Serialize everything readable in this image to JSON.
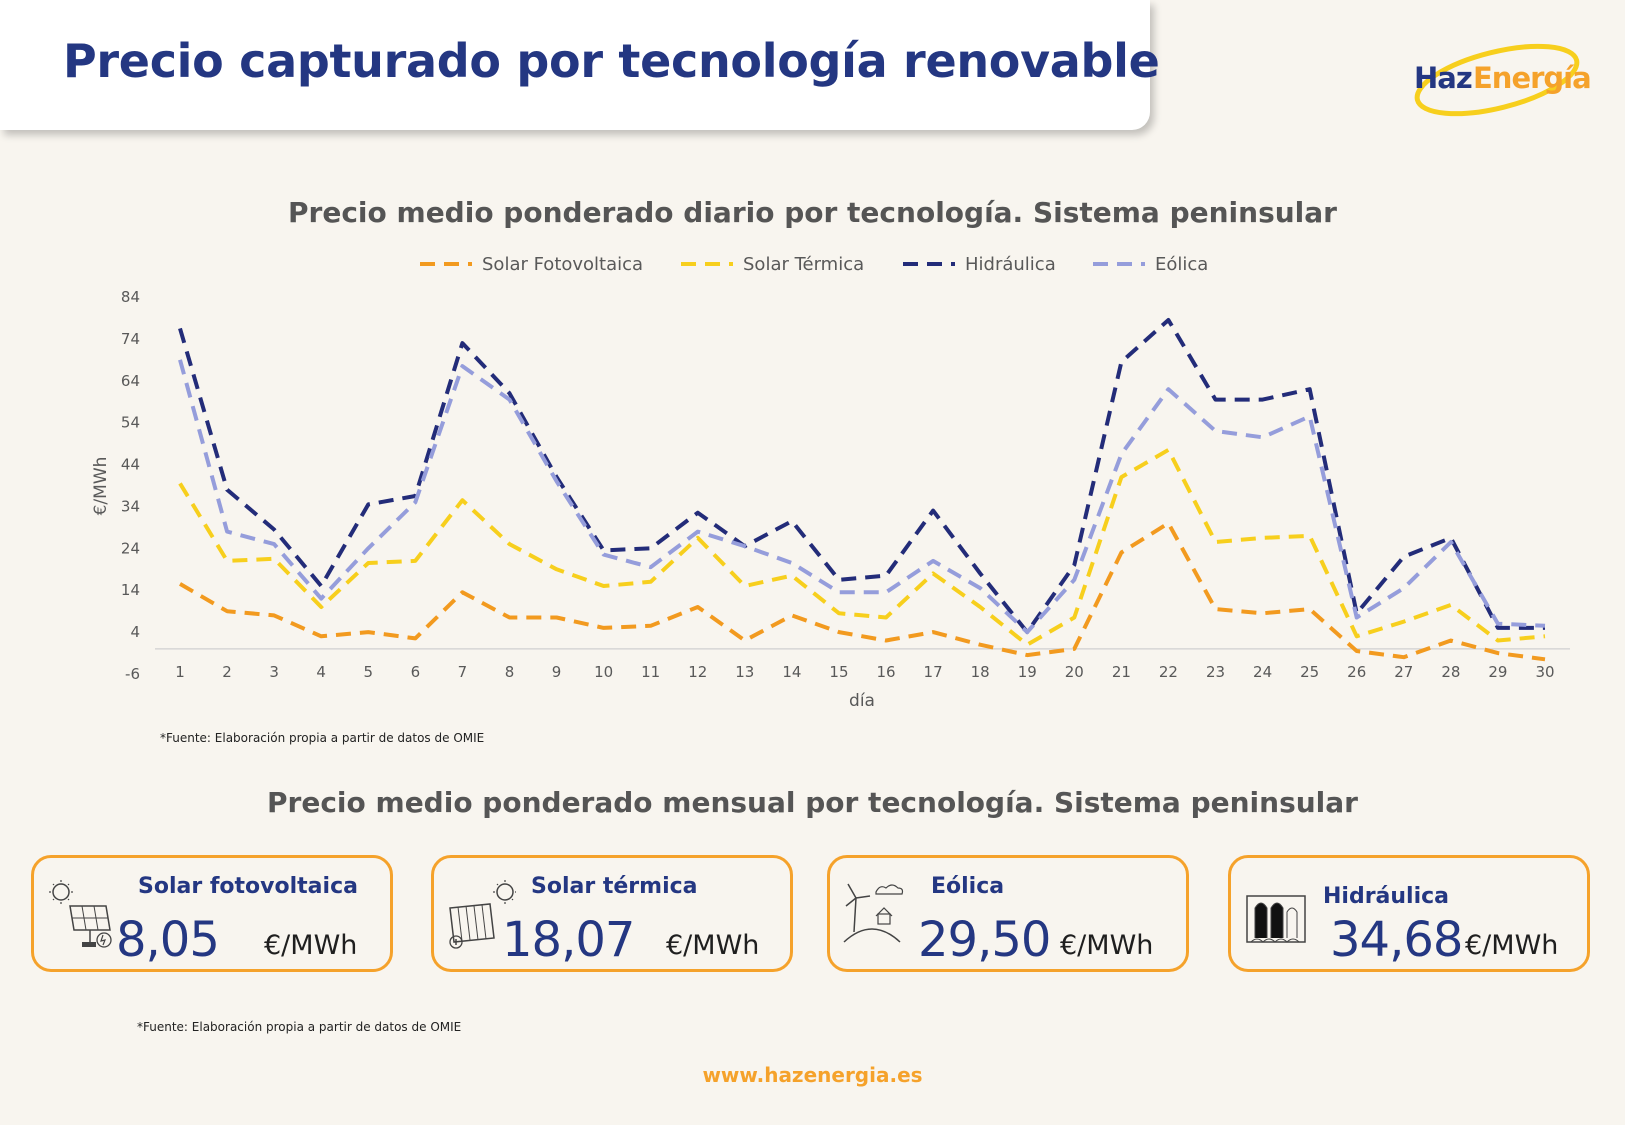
{
  "header": {
    "title": "Precio capturado por tecnología renovable",
    "logo_text_1": "Haz",
    "logo_text_2": "Energía"
  },
  "colors": {
    "brand_blue": "#243782",
    "brand_orange": "#f5a22b",
    "series_solar_fv": "#f29a1f",
    "series_solar_termica": "#f7cf1d",
    "series_hidraulica": "#232c79",
    "series_eolica": "#959ddb"
  },
  "chart_data": {
    "type": "line",
    "title": "Precio medio ponderado diario por tecnología. Sistema peninsular",
    "xlabel": "día",
    "ylabel": "€/MWh",
    "ylim": [
      -6,
      84
    ],
    "yticks": [
      -6,
      4,
      14,
      24,
      34,
      44,
      54,
      64,
      74,
      84
    ],
    "x": [
      1,
      2,
      3,
      4,
      5,
      6,
      7,
      8,
      9,
      10,
      11,
      12,
      13,
      14,
      15,
      16,
      17,
      18,
      19,
      20,
      21,
      22,
      23,
      24,
      25,
      26,
      27,
      28,
      29,
      30
    ],
    "legend_position": "top-center",
    "line_style": "dashed",
    "grid": false,
    "series": [
      {
        "name": "Solar Fotovoltaica",
        "color": "#f29a1f",
        "values": [
          15.5,
          9,
          8,
          3,
          4,
          2.5,
          13.5,
          7.5,
          7.5,
          5,
          5.5,
          10,
          2,
          8,
          4,
          2,
          4,
          1,
          -1.5,
          0,
          23,
          30,
          9.5,
          8.5,
          9.5,
          -0.5,
          -2,
          2,
          -1,
          -2.5
        ]
      },
      {
        "name": "Solar Térmica",
        "color": "#f7cf1d",
        "values": [
          39.5,
          21,
          21.5,
          10,
          20.5,
          21,
          35.5,
          25,
          19,
          15,
          16,
          26.5,
          15,
          17.5,
          8.5,
          7.5,
          18,
          10,
          1,
          7.5,
          41,
          47.5,
          25.5,
          26.5,
          27,
          3,
          6.5,
          10.5,
          2,
          3
        ]
      },
      {
        "name": "Hidráulica",
        "color": "#232c79",
        "values": [
          76.5,
          38,
          28.5,
          15,
          34.5,
          36.5,
          73,
          61,
          41,
          23.5,
          24,
          32.5,
          24.5,
          30.5,
          16.5,
          17.5,
          33,
          18,
          4,
          20,
          68.5,
          78.5,
          59.5,
          59.5,
          62,
          8.5,
          22,
          26.5,
          5,
          5
        ]
      },
      {
        "name": "Eólica",
        "color": "#959ddb",
        "values": [
          69,
          28,
          25,
          12,
          24,
          35,
          67.5,
          59.5,
          40,
          22.5,
          19.5,
          28,
          24.5,
          20.5,
          13.5,
          13.5,
          21,
          14.5,
          4,
          16.5,
          46.5,
          62,
          52,
          50.5,
          55.5,
          7.5,
          14.5,
          25.5,
          6,
          5.5
        ]
      }
    ]
  },
  "monthly": {
    "title": "Precio medio ponderado mensual por tecnología. Sistema peninsular",
    "cards": [
      {
        "title": "Solar fotovoltaica",
        "value": "8,05",
        "unit": "€/MWh",
        "icon": "solar-panel-icon"
      },
      {
        "title": "Solar térmica",
        "value": "18,07",
        "unit": "€/MWh",
        "icon": "solar-thermal-icon"
      },
      {
        "title": "Eólica",
        "value": "29,50",
        "unit": "€/MWh",
        "icon": "wind-turbine-icon"
      },
      {
        "title": "Hidráulica",
        "value": "34,68",
        "unit": "€/MWh",
        "icon": "dam-icon"
      }
    ]
  },
  "source_note": "*Fuente:  Elaboración propia a partir de datos de OMIE",
  "footer": {
    "url": "www.hazenergia.es"
  }
}
